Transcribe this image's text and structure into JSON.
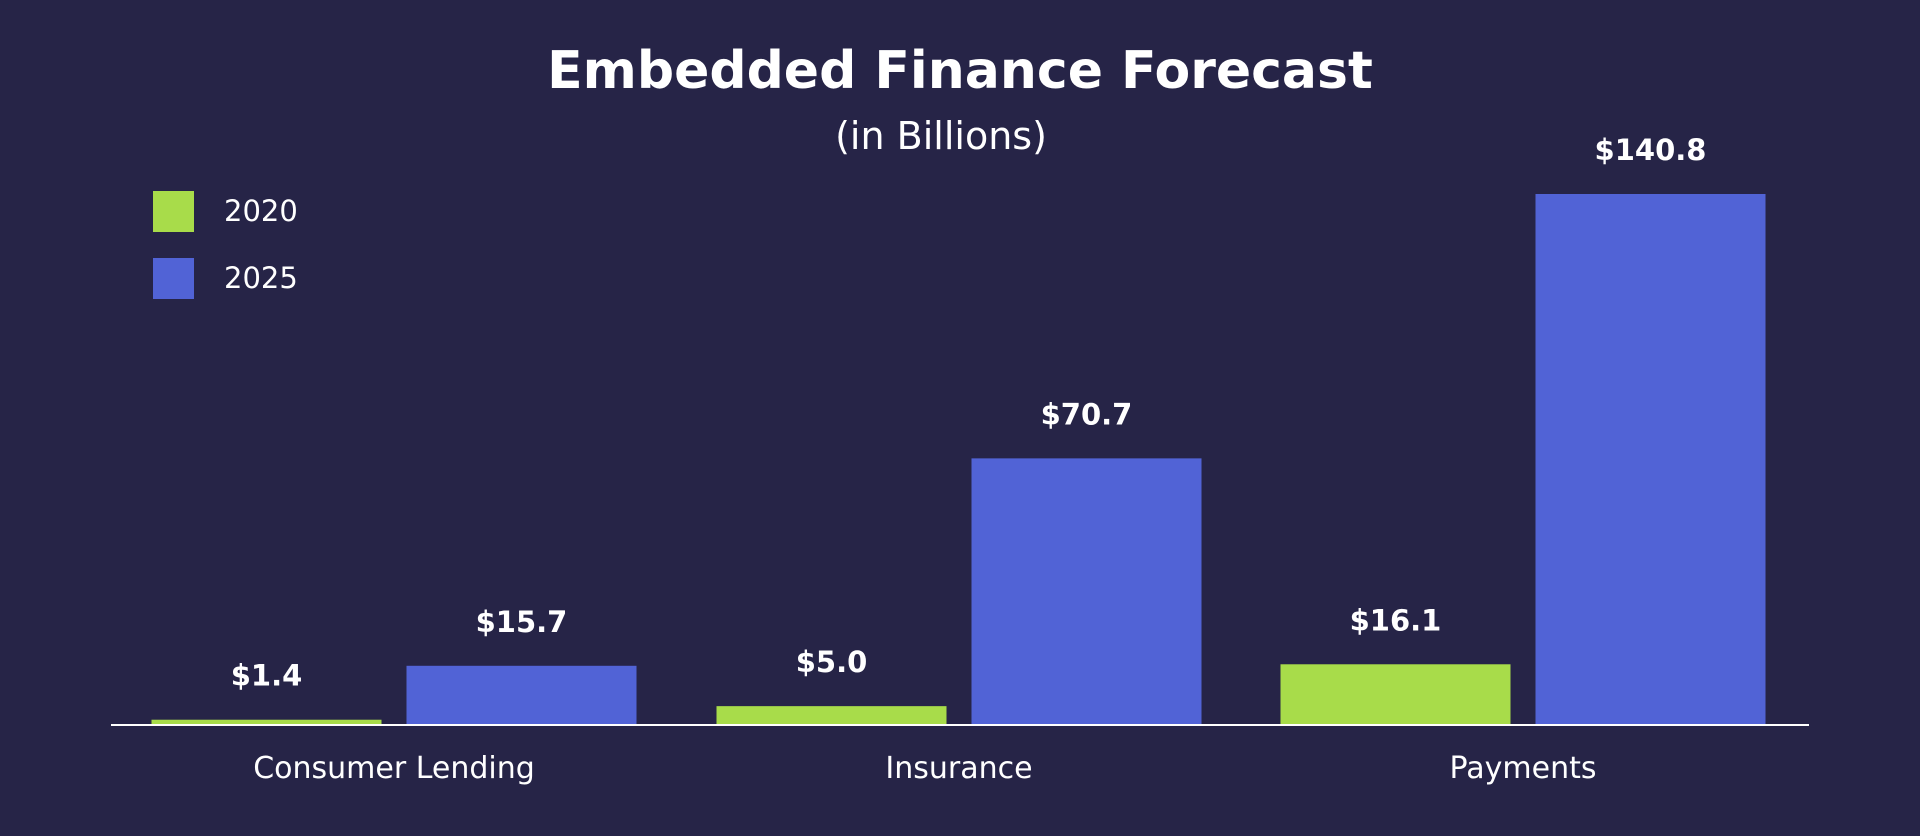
{
  "colors": {
    "background": "#262447",
    "series_2020": "#a8dc4a",
    "series_2025": "#5163d6",
    "text": "#ffffff",
    "axis": "#ffffff"
  },
  "chart_data": {
    "type": "bar",
    "title": "Embedded Finance Forecast",
    "subtitle": "(in Billions)",
    "categories": [
      "Consumer Lending",
      "Insurance",
      "Payments"
    ],
    "series": [
      {
        "name": "2020",
        "values": [
          1.4,
          5.0,
          16.1
        ],
        "labels": [
          "$1.4",
          "$5.0",
          "$16.1"
        ],
        "color": "#a8dc4a"
      },
      {
        "name": "2025",
        "values": [
          15.7,
          70.7,
          140.8
        ],
        "labels": [
          "$15.7",
          "$70.7",
          "$140.8"
        ],
        "color": "#5163d6"
      }
    ],
    "xlabel": "",
    "ylabel": "",
    "ylim": [
      0,
      140.8
    ],
    "grid": false,
    "y_axis_visible": false,
    "legend_position": "top-left"
  }
}
